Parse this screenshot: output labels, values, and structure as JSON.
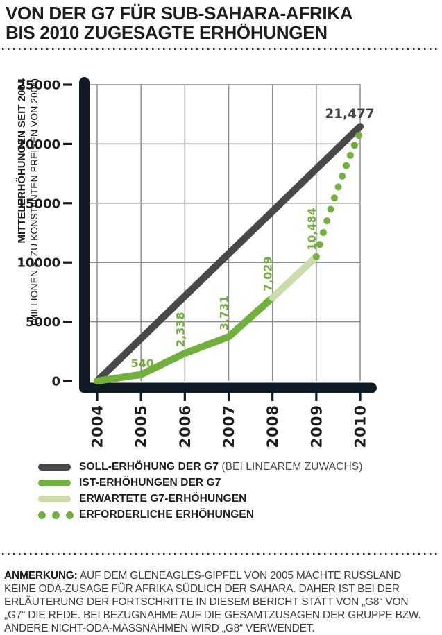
{
  "title": {
    "line1": "VON DER G7 FÜR SUB-SAHARA-AFRIKA",
    "line2": "BIS 2010 ZUGESAGTE ERHÖHUNGEN"
  },
  "colors": {
    "green": "#70b03b",
    "light_green": "#cbdcab",
    "dark_gray": "#48484a",
    "axis": "#111b25",
    "grid": "#8d8d8d",
    "ink": "#1d1d1b",
    "note_text": "#3c3c3b"
  },
  "chart_data": {
    "type": "line",
    "ylabel_bold": "MITTELERHÖHUNGEN SEIT 2004",
    "ylabel_sub": "(MILLIONEN $, ZU KONSTANTEN PREISEN VON 2008)",
    "xlim": [
      2004,
      2010
    ],
    "ylim": [
      0,
      25000
    ],
    "grid": true,
    "x_ticks": [
      2004,
      2005,
      2006,
      2007,
      2008,
      2009,
      2010
    ],
    "y_ticks": [
      0,
      5000,
      10000,
      15000,
      20000,
      25000
    ],
    "y_tick_labels": [
      "0",
      "5000",
      "10000",
      "15000",
      "20000",
      "25000"
    ],
    "series": [
      {
        "name": "SOLL-ERHÖHUNG DER G7 (BEI LINEAREM ZUWACHS)",
        "style": "solid",
        "color_key": "dark_gray",
        "points": [
          [
            2004,
            0
          ],
          [
            2010,
            21477
          ]
        ]
      },
      {
        "name": "IST-ERHÖHUNGEN DER G7",
        "style": "solid",
        "color_key": "green",
        "points": [
          [
            2004,
            0
          ],
          [
            2005,
            540
          ],
          [
            2006,
            2338
          ],
          [
            2007,
            3731
          ],
          [
            2008,
            7029
          ]
        ]
      },
      {
        "name": "ERWARTETE G7-ERHÖHUNGEN",
        "style": "solid",
        "color_key": "light_green",
        "points": [
          [
            2008,
            7029
          ],
          [
            2009,
            10484
          ]
        ]
      },
      {
        "name": "ERFORDERLICHE ERHÖHUNGEN",
        "style": "dotted",
        "color_key": "green",
        "points": [
          [
            2009,
            10484
          ],
          [
            2010,
            21477
          ]
        ]
      }
    ],
    "annotations": [
      {
        "text": "540",
        "x": 2005,
        "y": 540,
        "rotated": false,
        "color_key": "green"
      },
      {
        "text": "2,338",
        "x": 2006,
        "y": 2338,
        "rotated": true,
        "color_key": "green"
      },
      {
        "text": "3,731",
        "x": 2007,
        "y": 3731,
        "rotated": true,
        "color_key": "green"
      },
      {
        "text": "7,029",
        "x": 2008,
        "y": 7029,
        "rotated": true,
        "color_key": "green"
      },
      {
        "text": "10,484",
        "x": 2009,
        "y": 10484,
        "rotated": true,
        "color_key": "green"
      },
      {
        "text": "21,477",
        "x": 2010,
        "y": 21477,
        "rotated": false,
        "color_key": "dark_gray"
      }
    ]
  },
  "legend": [
    {
      "swatch": "line-dark",
      "label": "SOLL-ERHÖHUNG DER G7",
      "suffix": " (BEI LINEAREM ZUWACHS)"
    },
    {
      "swatch": "line-green",
      "label": "IST-ERHÖHUNGEN DER G7",
      "suffix": ""
    },
    {
      "swatch": "line-lightgreen",
      "label": "ERWARTETE G7-ERHÖHUNGEN",
      "suffix": ""
    },
    {
      "swatch": "dots-green",
      "label": "ERFORDERLICHE ERHÖHUNGEN",
      "suffix": ""
    }
  ],
  "note": {
    "label": "ANMERKUNG:",
    "text": "AUF DEM GLENEAGLES-GIPFEL VON 2005 MACHTE RUSSLAND KEINE ODA-ZUSAGE FÜR AFRIKA SÜDLICH DER SAHARA. DAHER IST BEI DER ERLÄUTERUNG DER FORTSCHRITTE IN DIESEM BERICHT STATT VON „G8“ VON „G7“ DIE REDE. BEI BEZUGNAHME AUF DIE GESAMTZUSAGEN DER GRUPPE BZW. ANDERE NICHT-ODA-MASSNAHMEN WIRD „G8“ VERWENDET."
  }
}
